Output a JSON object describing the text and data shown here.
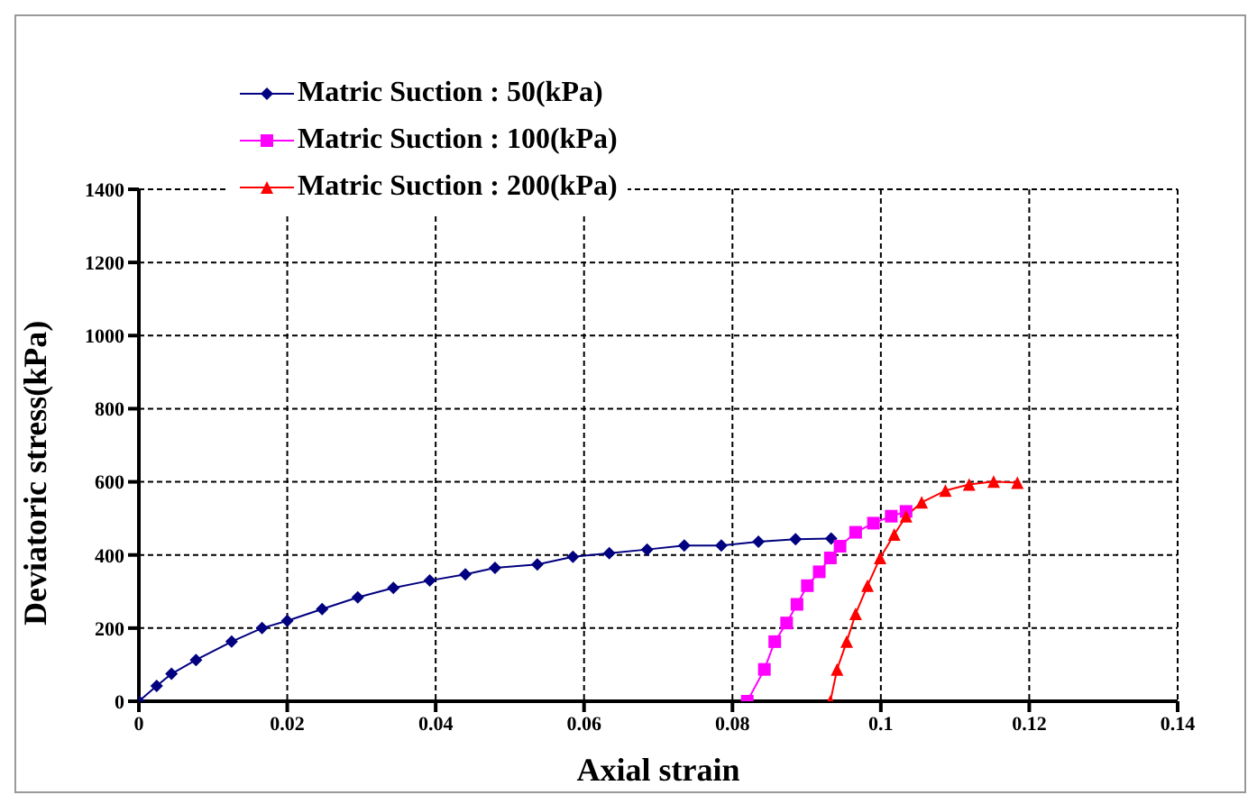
{
  "chart_data": {
    "type": "line",
    "xlabel": "Axial strain",
    "ylabel": "Deviatoric stress(kPa)",
    "xlim": [
      0,
      0.14
    ],
    "ylim": [
      0,
      1400
    ],
    "xticks": [
      0,
      0.02,
      0.04,
      0.06,
      0.08,
      0.1,
      0.12,
      0.14
    ],
    "yticks": [
      0,
      200,
      400,
      600,
      800,
      1000,
      1200,
      1400
    ],
    "grid": true,
    "legend": "top left",
    "line_style": "solid",
    "series": [
      {
        "name": "Matric Suction : 50(kPa)",
        "color": "#000080",
        "marker": "diamond",
        "x": [
          0,
          0.0024,
          0.0044,
          0.0077,
          0.0125,
          0.0166,
          0.02,
          0.0247,
          0.0295,
          0.0343,
          0.0392,
          0.044,
          0.048,
          0.0537,
          0.0585,
          0.0634,
          0.0685,
          0.0735,
          0.0785,
          0.0835,
          0.0885,
          0.0933
        ],
        "values": [
          0,
          42,
          75,
          113,
          163,
          200,
          220,
          252,
          284,
          310,
          330,
          347,
          365,
          374,
          395,
          405,
          415,
          426,
          426,
          436,
          443,
          445
        ]
      },
      {
        "name": "Matric Suction : 100(kPa)",
        "color": "#ff00ff",
        "marker": "square",
        "x": [
          0.082,
          0.0843,
          0.0857,
          0.0873,
          0.0887,
          0.0901,
          0.0917,
          0.0932,
          0.0945,
          0.0966,
          0.099,
          0.1014,
          0.1034
        ],
        "values": [
          0,
          87,
          163,
          214,
          265,
          316,
          354,
          392,
          424,
          462,
          487,
          506,
          519
        ]
      },
      {
        "name": "Matric Suction : 200(kPa)",
        "color": "#ff0000",
        "marker": "triangle",
        "x": [
          0.0932,
          0.0941,
          0.0954,
          0.0966,
          0.0982,
          0.0999,
          0.1018,
          0.1034,
          0.1055,
          0.1087,
          0.1119,
          0.1152,
          0.1184
        ],
        "values": [
          0,
          87,
          163,
          239,
          316,
          392,
          456,
          506,
          544,
          576,
          593,
          601,
          598
        ]
      }
    ]
  }
}
